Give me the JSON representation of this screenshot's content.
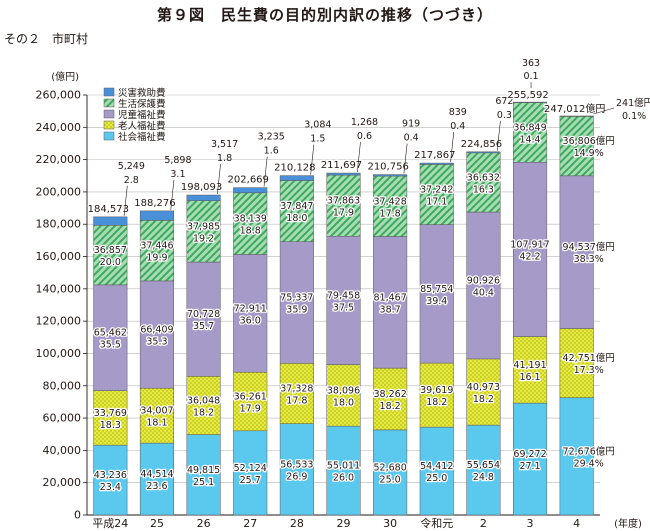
{
  "title": "第９図　民生費の目的別内訳の推移（つづき）",
  "subtitle": "その２　市町村",
  "chart_data": {
    "type": "bar",
    "stacked": true,
    "ylabel": "(億円)",
    "xlabel": "(年度)",
    "ylim": [
      0,
      260000
    ],
    "yticks": [
      0,
      20000,
      40000,
      60000,
      80000,
      100000,
      120000,
      140000,
      160000,
      180000,
      200000,
      220000,
      240000,
      260000
    ],
    "ytick_labels": [
      "0",
      "20,000",
      "40,000",
      "60,000",
      "80,000",
      "100,000",
      "120,000",
      "140,000",
      "160,000",
      "180,000",
      "200,000",
      "220,000",
      "240,000",
      "260,000"
    ],
    "categories": [
      "平成24",
      "25",
      "26",
      "27",
      "28",
      "29",
      "30",
      "令和元",
      "2",
      "3",
      "4"
    ],
    "legend_position": "top-left",
    "series": [
      {
        "name": "社会福祉費",
        "color": "#5bc8ee",
        "pattern": "solid",
        "values": [
          43236,
          44514,
          49815,
          52124,
          56533,
          55011,
          52680,
          54412,
          55654,
          69272,
          72676
        ],
        "value_labels": [
          "43,236",
          "44,514",
          "49,815",
          "52,124",
          "56,533",
          "55,011",
          "52,680",
          "54,412",
          "55,654",
          "69,272",
          "72,676億円"
        ],
        "pct_labels": [
          "23.4",
          "23.6",
          "25.1",
          "25.7",
          "26.9",
          "26.0",
          "25.0",
          "25.0",
          "24.8",
          "27.1",
          "29.4%"
        ]
      },
      {
        "name": "老人福祉費",
        "color": "#e6ea3a",
        "pattern": "dots",
        "values": [
          33769,
          34007,
          36048,
          36261,
          37328,
          38096,
          38262,
          39619,
          40973,
          41191,
          42751
        ],
        "value_labels": [
          "33,769",
          "34,007",
          "36,048",
          "36,261",
          "37,328",
          "38,096",
          "38,262",
          "39,619",
          "40,973",
          "41,191",
          "42,751億円"
        ],
        "pct_labels": [
          "18.3",
          "18.1",
          "18.2",
          "17.9",
          "17.8",
          "18.0",
          "18.2",
          "18.2",
          "18.2",
          "16.1",
          "17.3%"
        ]
      },
      {
        "name": "児童福祉費",
        "color": "#a59ac8",
        "pattern": "solid",
        "values": [
          65462,
          66409,
          70728,
          72911,
          75337,
          79458,
          81467,
          85754,
          90926,
          107917,
          94537
        ],
        "value_labels": [
          "65,462",
          "66,409",
          "70,728",
          "72,911",
          "75,337",
          "79,458",
          "81,467",
          "85,754",
          "90,926",
          "107,917",
          "94,537億円"
        ],
        "pct_labels": [
          "35.5",
          "35.3",
          "35.7",
          "36.0",
          "35.9",
          "37.5",
          "38.7",
          "39.4",
          "40.4",
          "42.2",
          "38.3%"
        ]
      },
      {
        "name": "生活保護費",
        "color": "#3daa5e",
        "pattern": "hatch",
        "values": [
          36857,
          37446,
          37985,
          38139,
          37847,
          37863,
          37428,
          37242,
          36632,
          36849,
          36806
        ],
        "value_labels": [
          "36,857",
          "37,446",
          "37,985",
          "38,139",
          "37,847",
          "37,863",
          "37,428",
          "37,242",
          "36,632",
          "36,849",
          "36,806億円"
        ],
        "pct_labels": [
          "20.0",
          "19.9",
          "19.2",
          "18.8",
          "18.0",
          "17.9",
          "17.8",
          "17.1",
          "16.3",
          "14.4",
          "14.9%"
        ]
      },
      {
        "name": "災害救助費",
        "color": "#4a90d9",
        "pattern": "solid",
        "values": [
          5249,
          5898,
          3517,
          3235,
          3084,
          1268,
          919,
          839,
          672,
          363,
          241
        ],
        "value_labels": [
          "5,249",
          "5,898",
          "3,517",
          "3,235",
          "3,084",
          "1,268",
          "919",
          "839",
          "672",
          "363",
          "241億円"
        ],
        "pct_labels": [
          "2.8",
          "3.1",
          "1.8",
          "1.6",
          "1.5",
          "0.6",
          "0.4",
          "0.4",
          "0.3",
          "0.1",
          "0.1%"
        ]
      }
    ],
    "totals": [
      184573,
      188276,
      198093,
      202669,
      210128,
      211697,
      210756,
      217867,
      224856,
      255592,
      247012
    ],
    "total_labels": [
      "184,573",
      "188,276",
      "198,093",
      "202,669",
      "210,128",
      "211,697",
      "210,756",
      "217,867",
      "224,856",
      "255,592",
      "247,012億円"
    ]
  }
}
